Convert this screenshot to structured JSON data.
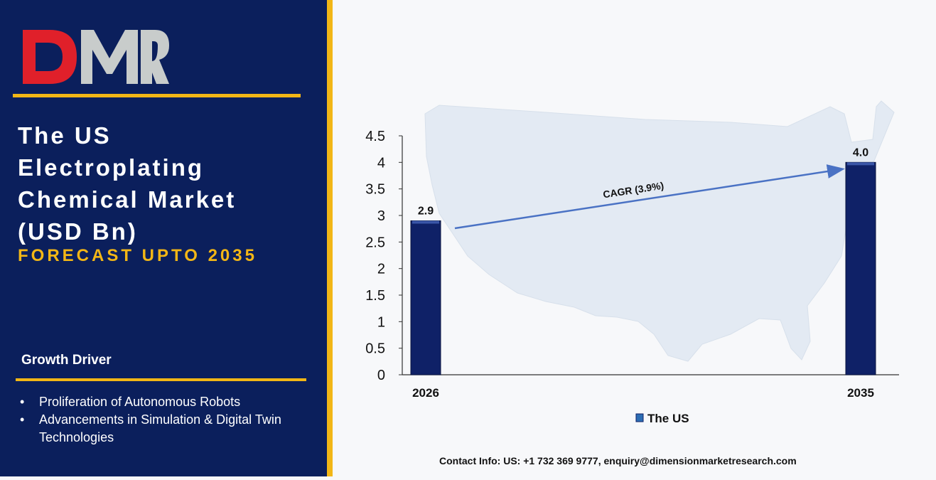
{
  "brand": {
    "logo_text": "DMR",
    "logo_colors": {
      "D": "#e0202a",
      "M": "#c8cccb",
      "R": "#c8cccb"
    }
  },
  "title_lines": [
    "The US",
    "Electroplating",
    "Chemical Market",
    "(USD Bn)"
  ],
  "subtitle": "FORECAST UPTO 2035",
  "growth": {
    "heading": "Growth Driver",
    "items": [
      "Proliferation of Autonomous Robots",
      "Advancements in Simulation & Digital Twin Technologies"
    ]
  },
  "contact": "Contact Info: US: +1 732 369 9777, enquiry@dimensionmarketresearch.com",
  "colors": {
    "navy": "#0b1f5c",
    "gold": "#f2b616",
    "bar": "#0f2167",
    "arrow": "#4a72c4"
  },
  "chart_data": {
    "type": "bar",
    "categories": [
      "2026",
      "2035"
    ],
    "series": [
      {
        "name": "The US",
        "values": [
          2.9,
          4.0
        ]
      }
    ],
    "data_labels": [
      "2.9",
      "4.0"
    ],
    "y_ticks": [
      "0",
      "0.5",
      "1",
      "1.5",
      "2",
      "2.5",
      "3",
      "3.5",
      "4",
      "4.5"
    ],
    "ylim": [
      0,
      4.5
    ],
    "annotation": "CAGR (3.9%)",
    "legend": "bottom-center",
    "background": "map-of-us"
  }
}
